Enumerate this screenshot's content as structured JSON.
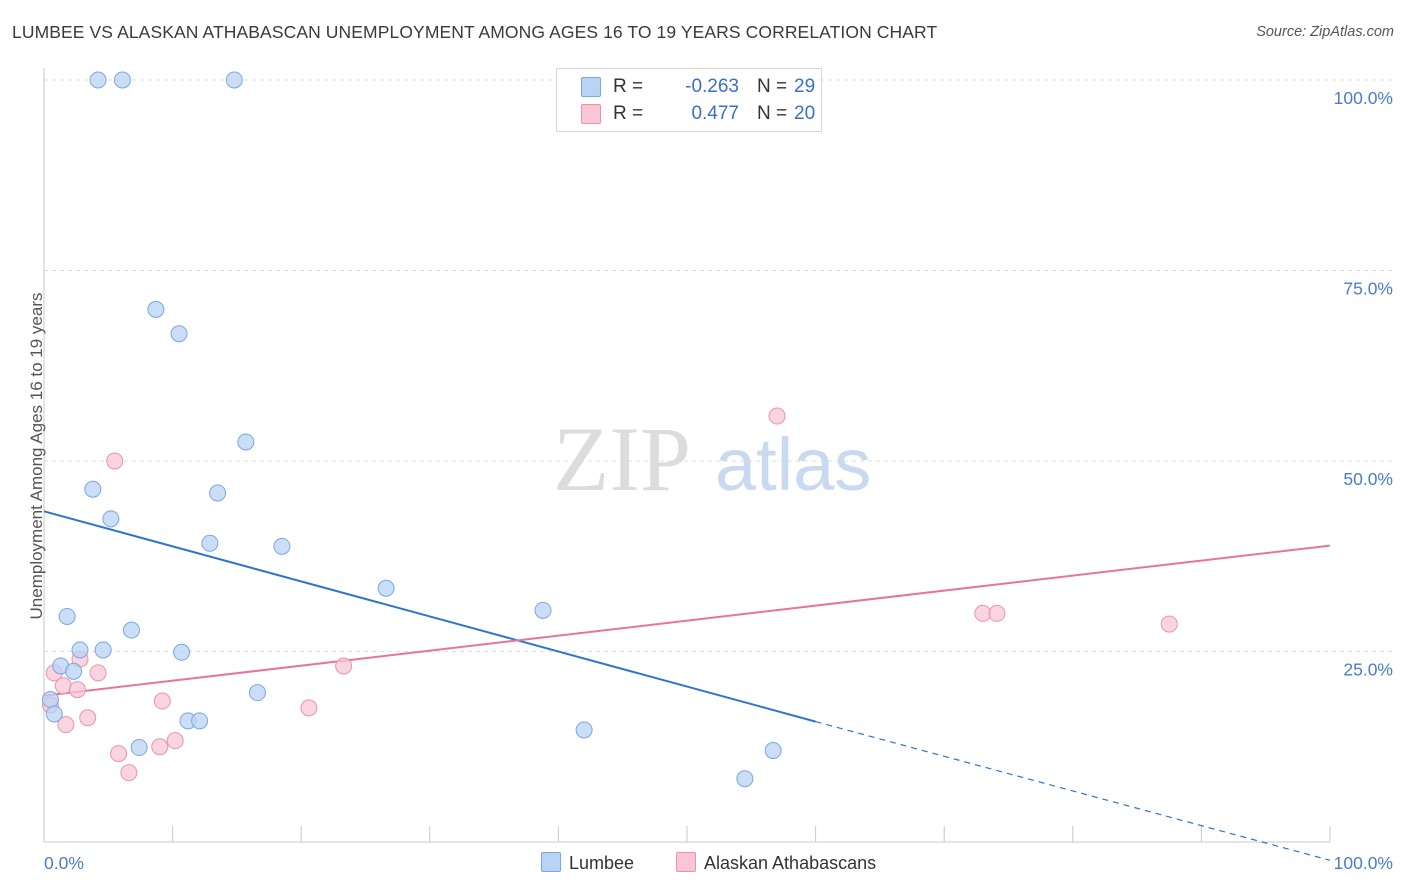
{
  "header": {
    "title": "LUMBEE VS ALASKAN ATHABASCAN UNEMPLOYMENT AMONG AGES 16 TO 19 YEARS CORRELATION CHART",
    "source": "Source: ZipAtlas.com"
  },
  "watermark": {
    "zip": "ZIP",
    "atlas": "atlas"
  },
  "stats": [
    {
      "r_label": "R =",
      "r_value": "-0.263",
      "n_label": "N =",
      "n_value": "29",
      "color": "#b9d3f5"
    },
    {
      "r_label": "R =",
      "r_value": "0.477",
      "n_label": "N =",
      "n_value": "20",
      "color": "#f8c6d5"
    }
  ],
  "legend": {
    "lumbee": "Lumbee",
    "athabascan": "Alaskan Athabascans"
  },
  "chart_data": {
    "type": "scatter",
    "title": "LUMBEE VS ALASKAN ATHABASCAN UNEMPLOYMENT AMONG AGES 16 TO 19 YEARS CORRELATION CHART",
    "xlabel": "",
    "ylabel": "Unemployment Among Ages 16 to 19 years",
    "xlim": [
      0,
      100
    ],
    "ylim": [
      0,
      100
    ],
    "x_tick_labels": [
      "0.0%",
      "100.0%"
    ],
    "y_tick_labels": [
      "100.0%",
      "75.0%",
      "50.0%",
      "25.0%"
    ],
    "y_tick_values": [
      100,
      75,
      50,
      25
    ],
    "grid": "horizontal dashed",
    "legend_position": "bottom",
    "colors": {
      "lumbee_fill": "#b9d3f5",
      "lumbee_stroke": "#7aa7e0",
      "lumbee_line": "#2e74d0",
      "athabascan_fill": "#f8c6d5",
      "athabascan_stroke": "#ea93ad",
      "athabascan_line": "#e8749a",
      "tick_text": "#4a7cc9"
    },
    "series": [
      {
        "name": "Lumbee",
        "points": [
          [
            0.5,
            18.7
          ],
          [
            0.8,
            16.8
          ],
          [
            1.3,
            23.1
          ],
          [
            1.8,
            29.6
          ],
          [
            2.3,
            22.4
          ],
          [
            2.8,
            25.2
          ],
          [
            3.8,
            46.3
          ],
          [
            4.2,
            100
          ],
          [
            4.6,
            25.2
          ],
          [
            5.2,
            42.4
          ],
          [
            6.1,
            100
          ],
          [
            6.8,
            27.8
          ],
          [
            7.4,
            12.4
          ],
          [
            8.7,
            69.9
          ],
          [
            10.5,
            66.7
          ],
          [
            10.7,
            24.9
          ],
          [
            11.2,
            15.9
          ],
          [
            12.1,
            15.9
          ],
          [
            12.9,
            39.2
          ],
          [
            13.5,
            45.8
          ],
          [
            14.8,
            100
          ],
          [
            15.7,
            52.5
          ],
          [
            16.6,
            19.6
          ],
          [
            18.5,
            38.8
          ],
          [
            26.6,
            33.3
          ],
          [
            38.8,
            30.4
          ],
          [
            42.0,
            14.7
          ],
          [
            54.5,
            8.3
          ],
          [
            56.7,
            12.0
          ]
        ],
        "trend": {
          "x": [
            0,
            60
          ],
          "y": [
            43.4,
            15.8
          ],
          "dashed_to": [
            100,
            -2.4
          ]
        }
      },
      {
        "name": "Alaskan Athabascans",
        "points": [
          [
            0.5,
            18.0
          ],
          [
            0.8,
            22.2
          ],
          [
            1.5,
            20.5
          ],
          [
            1.7,
            15.4
          ],
          [
            2.6,
            20.0
          ],
          [
            2.8,
            24.0
          ],
          [
            3.4,
            16.3
          ],
          [
            4.2,
            22.2
          ],
          [
            5.5,
            50.0
          ],
          [
            5.8,
            11.6
          ],
          [
            6.6,
            9.1
          ],
          [
            9.0,
            12.5
          ],
          [
            9.2,
            18.5
          ],
          [
            10.2,
            13.3
          ],
          [
            20.6,
            17.6
          ],
          [
            23.3,
            23.1
          ],
          [
            57.0,
            55.9
          ],
          [
            73.0,
            30.0
          ],
          [
            74.1,
            30.0
          ],
          [
            87.5,
            28.6
          ]
        ],
        "trend": {
          "x": [
            0,
            100
          ],
          "y": [
            19.2,
            38.9
          ]
        }
      }
    ]
  }
}
